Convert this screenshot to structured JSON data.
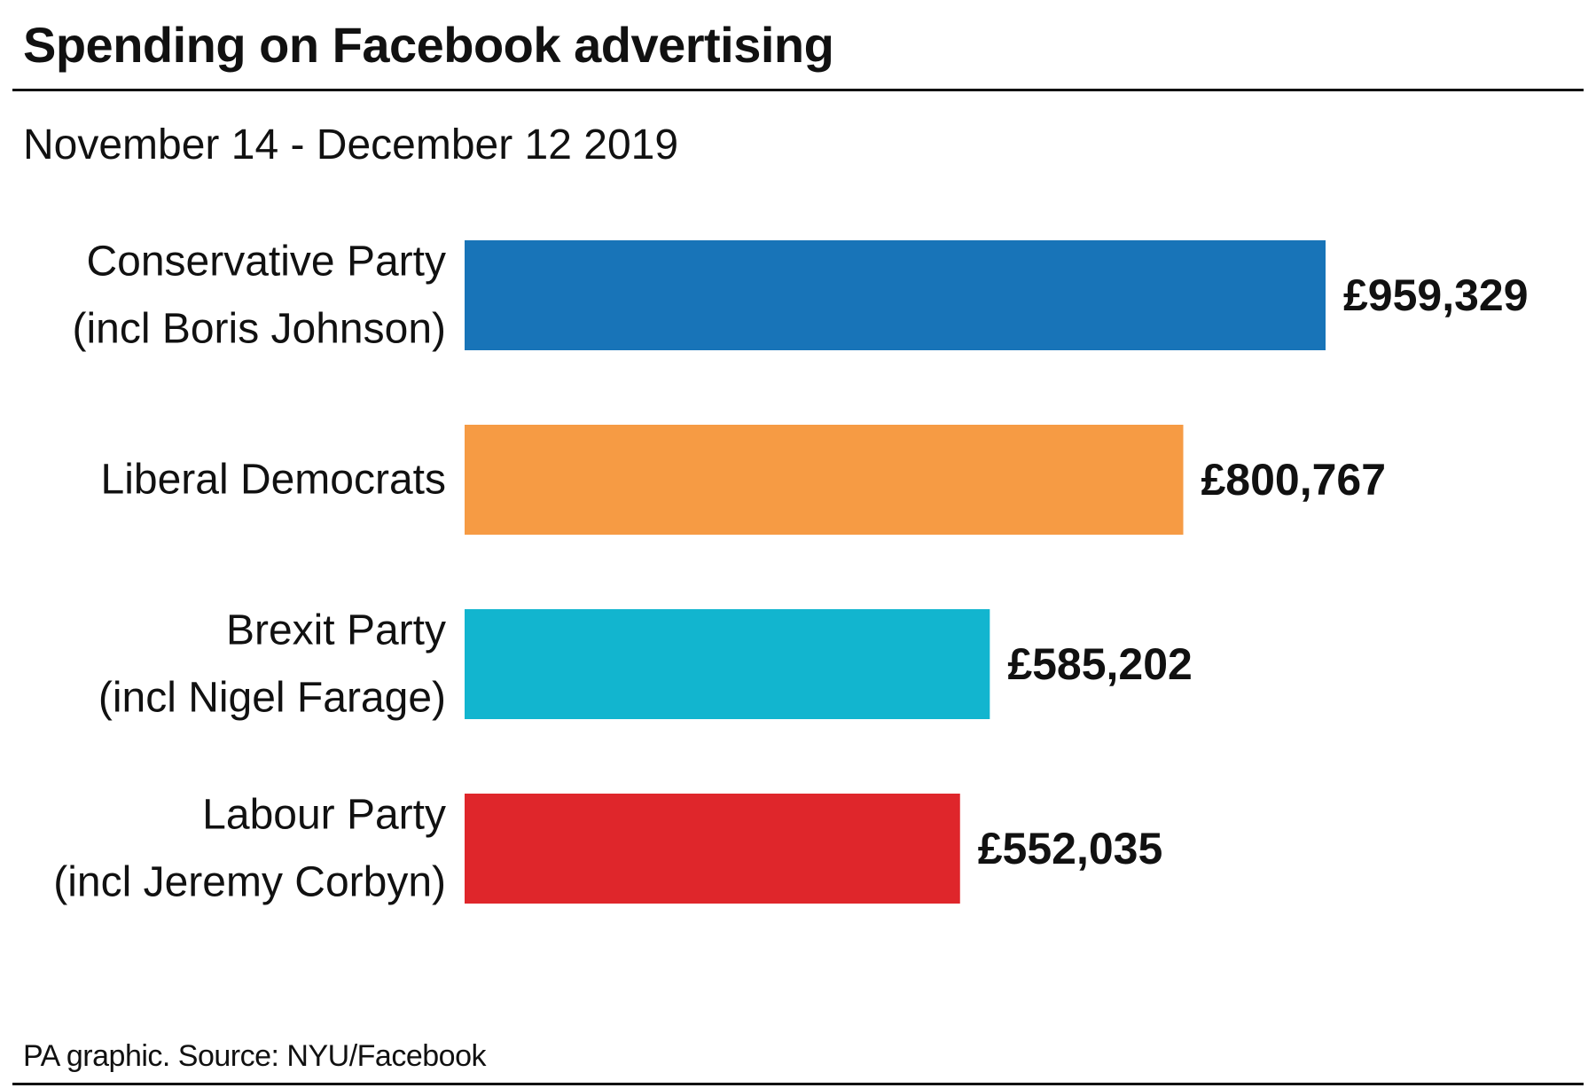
{
  "title": "Spending on Facebook advertising",
  "subtitle": "November 14 - December 12 2019",
  "source": "PA graphic. Source: NYU/Facebook",
  "chart_data": {
    "type": "bar",
    "orientation": "horizontal",
    "categories": [
      [
        "Conservative Party",
        "(incl Boris Johnson)"
      ],
      [
        "Liberal Democrats"
      ],
      [
        "Brexit Party",
        "(incl Nigel Farage)"
      ],
      [
        "Labour Party",
        "(incl Jeremy Corbyn)"
      ]
    ],
    "values": [
      959329,
      800767,
      585202,
      552035
    ],
    "value_labels": [
      "£959,329",
      "£800,767",
      "£585,202",
      "£552,035"
    ],
    "colors": [
      "#1874b8",
      "#f69b44",
      "#12b5cf",
      "#df262b"
    ],
    "title": "Spending on Facebook advertising",
    "grid": false,
    "xlim": [
      0,
      959329
    ]
  }
}
